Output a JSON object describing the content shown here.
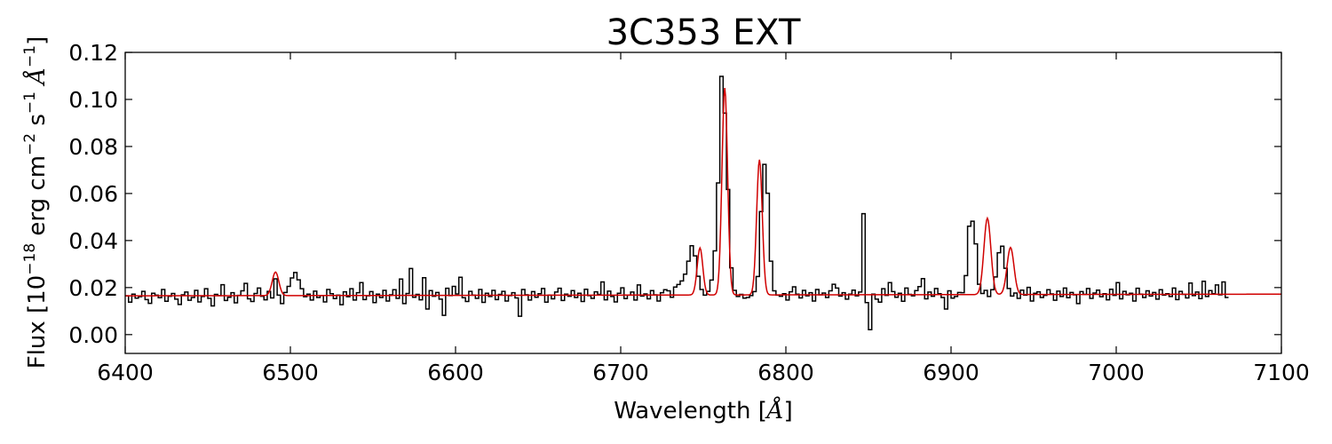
{
  "chart_data": {
    "type": "line",
    "title": "3C353 EXT",
    "xlabel": {
      "text": "Wavelength [",
      "unit": "Å",
      "close": "]"
    },
    "ylabel": {
      "prefix": "Flux [10",
      "exp1": "−18",
      "mid1": " erg cm",
      "exp2": "−2",
      "mid2": " s",
      "exp3": "−1",
      "unit": " Å",
      "exp4": "−1",
      "close": "]"
    },
    "xlim": [
      6400,
      7100
    ],
    "ylim": [
      -0.008,
      0.12
    ],
    "x_ticks": [
      "6400",
      "6500",
      "6600",
      "6700",
      "6800",
      "6900",
      "7000",
      "7100"
    ],
    "x_tick_values": [
      6400,
      6500,
      6600,
      6700,
      6800,
      6900,
      7000,
      7100
    ],
    "y_ticks": [
      "0.00",
      "0.02",
      "0.04",
      "0.06",
      "0.08",
      "0.10",
      "0.12"
    ],
    "y_tick_values": [
      0.0,
      0.02,
      0.04,
      0.06,
      0.07999,
      0.1,
      0.12
    ],
    "grid": false,
    "legend": "none",
    "series": [
      {
        "role": "observed spectrum (steps)",
        "color": "#000000",
        "x_start": 6400,
        "x_step": 2,
        "values": [
          0.0165,
          0.0138,
          0.0172,
          0.0155,
          0.0161,
          0.0184,
          0.0149,
          0.0133,
          0.0176,
          0.0168,
          0.0157,
          0.0192,
          0.0142,
          0.0163,
          0.0175,
          0.0151,
          0.0128,
          0.0169,
          0.0181,
          0.0146,
          0.0158,
          0.0188,
          0.0139,
          0.0162,
          0.0195,
          0.0154,
          0.0122,
          0.0171,
          0.0166,
          0.0212,
          0.0145,
          0.0159,
          0.0178,
          0.0135,
          0.0167,
          0.0186,
          0.0218,
          0.0152,
          0.0141,
          0.0175,
          0.0198,
          0.0163,
          0.0148,
          0.0184,
          0.0156,
          0.0237,
          0.0168,
          0.0132,
          0.0179,
          0.0205,
          0.0241,
          0.0264,
          0.0233,
          0.0195,
          0.0161,
          0.0172,
          0.0147,
          0.0185,
          0.0158,
          0.0166,
          0.0139,
          0.0192,
          0.0174,
          0.0153,
          0.0168,
          0.0127,
          0.0182,
          0.0161,
          0.0195,
          0.0147,
          0.0178,
          0.0221,
          0.0149,
          0.0165,
          0.0183,
          0.0136,
          0.0172,
          0.0158,
          0.0188,
          0.0143,
          0.0169,
          0.0191,
          0.0154,
          0.0236,
          0.0132,
          0.0175,
          0.0281,
          0.0159,
          0.0171,
          0.0148,
          0.0242,
          0.0109,
          0.0187,
          0.0163,
          0.0179,
          0.0151,
          0.0082,
          0.0197,
          0.0166,
          0.0205,
          0.0173,
          0.0244,
          0.0157,
          0.0141,
          0.0184,
          0.0168,
          0.0154,
          0.0192,
          0.0137,
          0.0176,
          0.0162,
          0.0188,
          0.0149,
          0.0171,
          0.0184,
          0.0143,
          0.0166,
          0.0178,
          0.0156,
          0.0078,
          0.0192,
          0.0169,
          0.0147,
          0.0183,
          0.0159,
          0.0174,
          0.0196,
          0.0138,
          0.0168,
          0.0152,
          0.0181,
          0.0197,
          0.0145,
          0.0172,
          0.0163,
          0.0187,
          0.0158,
          0.0176,
          0.0141,
          0.0193,
          0.0166,
          0.0154,
          0.0182,
          0.0171,
          0.0224,
          0.0148,
          0.0185,
          0.0162,
          0.0139,
          0.0176,
          0.0199,
          0.0153,
          0.0168,
          0.0181,
          0.0147,
          0.0211,
          0.0164,
          0.0173,
          0.0152,
          0.0187,
          0.0169,
          0.0143,
          0.0178,
          0.0191,
          0.0186,
          0.0159,
          0.0202,
          0.0213,
          0.0228,
          0.0257,
          0.0312,
          0.0378,
          0.0335,
          0.0248,
          0.0192,
          0.0168,
          0.0184,
          0.0232,
          0.0356,
          0.0645,
          0.1098,
          0.0942,
          0.0617,
          0.0284,
          0.0188,
          0.0162,
          0.0171,
          0.0155,
          0.0158,
          0.0166,
          0.0183,
          0.0247,
          0.0523,
          0.0724,
          0.0601,
          0.0312,
          0.0186,
          0.0168,
          0.0163,
          0.0174,
          0.0147,
          0.0182,
          0.0203,
          0.0172,
          0.0156,
          0.0188,
          0.0165,
          0.0178,
          0.0143,
          0.0192,
          0.0169,
          0.0177,
          0.0158,
          0.0186,
          0.0214,
          0.0198,
          0.0164,
          0.0178,
          0.0151,
          0.0172,
          0.0189,
          0.0165,
          0.0181,
          0.0514,
          0.0136,
          0.0021,
          0.0172,
          0.0151,
          0.0138,
          0.0195,
          0.0167,
          0.0221,
          0.0183,
          0.0159,
          0.0176,
          0.0142,
          0.0198,
          0.0171,
          0.0165,
          0.0187,
          0.0204,
          0.0238,
          0.0152,
          0.0181,
          0.0163,
          0.0196,
          0.0174,
          0.0158,
          0.0109,
          0.0186,
          0.0155,
          0.0162,
          0.0179,
          0.0178,
          0.0251,
          0.0461,
          0.0482,
          0.0386,
          0.0214,
          0.0175,
          0.0188,
          0.0162,
          0.0191,
          0.0245,
          0.0348,
          0.0376,
          0.0282,
          0.0196,
          0.0164,
          0.0177,
          0.0154,
          0.0189,
          0.0168,
          0.0201,
          0.0143,
          0.0176,
          0.0182,
          0.0158,
          0.0167,
          0.0191,
          0.0173,
          0.0146,
          0.0185,
          0.0162,
          0.0198,
          0.0157,
          0.0179,
          0.0169,
          0.0132,
          0.0183,
          0.0171,
          0.0196,
          0.0154,
          0.0177,
          0.0189,
          0.0161,
          0.0174,
          0.0148,
          0.0193,
          0.0167,
          0.0221,
          0.0152,
          0.0184,
          0.0169,
          0.0176,
          0.0143,
          0.0197,
          0.0172,
          0.0158,
          0.0186,
          0.0164,
          0.0179,
          0.0151,
          0.0191,
          0.0168,
          0.0174,
          0.0162,
          0.0198,
          0.0149,
          0.0184,
          0.0171,
          0.0156,
          0.0219,
          0.0166,
          0.0181,
          0.0153,
          0.0227,
          0.0162,
          0.0187,
          0.0174,
          0.0211,
          0.0169,
          0.0224,
          0.0158
        ]
      },
      {
        "role": "model fit",
        "color": "#d00000",
        "baseline": [
          0.0165,
          0.0172
        ],
        "lines": [
          {
            "center": 6491,
            "amp": 0.01,
            "sigma": 2.0
          },
          {
            "center": 6748,
            "amp": 0.02,
            "sigma": 1.7
          },
          {
            "center": 6763,
            "amp": 0.088,
            "sigma": 1.7
          },
          {
            "center": 6784,
            "amp": 0.0575,
            "sigma": 1.7
          },
          {
            "center": 6922,
            "amp": 0.0325,
            "sigma": 2.1
          },
          {
            "center": 6936,
            "amp": 0.02,
            "sigma": 2.1
          }
        ]
      }
    ]
  }
}
